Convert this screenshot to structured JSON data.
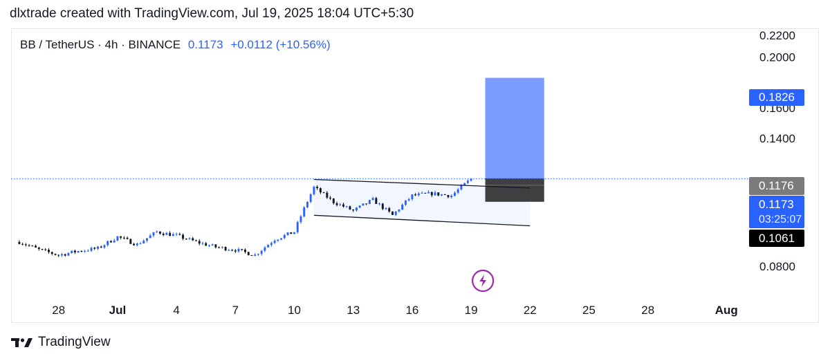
{
  "header": {
    "text": "dlxtrade created with TradingView.com, Jul 19, 2025 18:04 UTC+5:30"
  },
  "legend": {
    "symbol": "BB / TetherUS · 4h · BINANCE",
    "price": "0.1173",
    "change": "+0.0112 (+10.56%)"
  },
  "footer": {
    "brand": "TradingView"
  },
  "colors": {
    "up": "#2962ff",
    "down": "#131722",
    "target_box": "#7a9cff",
    "stop_box": "#3f3f41",
    "channel_fill": "#f1f6ff",
    "price_line": "#2962ff",
    "current_tag": "#2962ff",
    "high_tag": "#7b7b7d",
    "low_tag": "#000000",
    "target_tag": "#2962ff",
    "lightning": "#9c27b0"
  },
  "chart_data": {
    "type": "candlestick",
    "symbol": "BB / TetherUS",
    "timeframe": "4h",
    "exchange": "BINANCE",
    "x_ticks": [
      "28",
      "Jul",
      "4",
      "7",
      "10",
      "13",
      "16",
      "19",
      "22",
      "25",
      "28",
      "Aug"
    ],
    "y_ticks": [
      "0.2200",
      "0.2000",
      "0.1600",
      "0.1400",
      "0.0800"
    ],
    "price_tags": {
      "target": "0.1826",
      "high": "0.1176",
      "current": "0.1173",
      "countdown": "03:25:07",
      "low": "0.1061"
    },
    "last_price": 0.1173,
    "change": 0.0112,
    "change_percent": 10.56,
    "position_tool": {
      "entry": 0.1176,
      "target": 0.1826,
      "stop": 0.1061,
      "from": "2025-07-19",
      "to": "2025-07-22"
    },
    "channel": {
      "upper": [
        [
          "2025-07-11",
          0.117
        ],
        [
          "2025-07-22",
          0.1127
        ]
      ],
      "lower": [
        [
          "2025-07-11",
          0.1
        ],
        [
          "2025-07-22",
          0.0955
        ]
      ]
    },
    "price_path": [
      [
        "2025-06-26",
        0.089
      ],
      [
        "2025-06-27",
        0.086
      ],
      [
        "2025-06-28",
        0.084
      ],
      [
        "2025-06-29",
        0.0855
      ],
      [
        "2025-06-30",
        0.0865
      ],
      [
        "2025-07-01",
        0.091
      ],
      [
        "2025-07-02",
        0.088
      ],
      [
        "2025-07-03",
        0.093
      ],
      [
        "2025-07-04",
        0.0915
      ],
      [
        "2025-07-05",
        0.089
      ],
      [
        "2025-07-06",
        0.087
      ],
      [
        "2025-07-07",
        0.086
      ],
      [
        "2025-07-08",
        0.084
      ],
      [
        "2025-07-09",
        0.09
      ],
      [
        "2025-07-10",
        0.093
      ],
      [
        "2025-07-11",
        0.113
      ],
      [
        "2025-07-12",
        0.106
      ],
      [
        "2025-07-13",
        0.102
      ],
      [
        "2025-07-14",
        0.107
      ],
      [
        "2025-07-15",
        0.1
      ],
      [
        "2025-07-16",
        0.109
      ],
      [
        "2025-07-17",
        0.11
      ],
      [
        "2025-07-18",
        0.109
      ],
      [
        "2025-07-19",
        0.1173
      ]
    ]
  }
}
